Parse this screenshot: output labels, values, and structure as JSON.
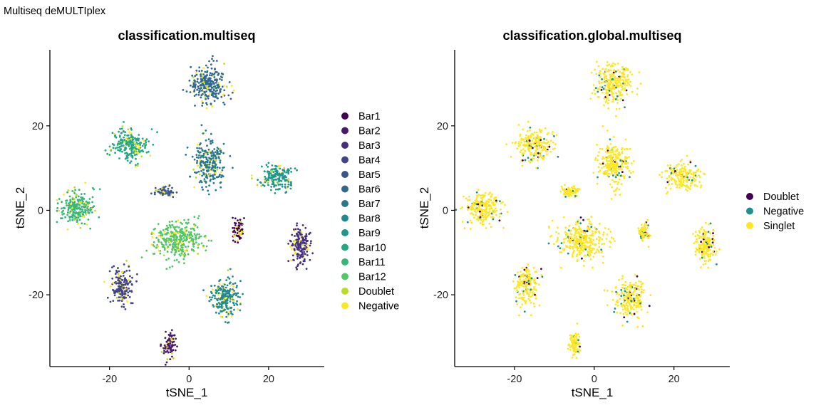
{
  "figure_title": "Multiseq deMULTIplex",
  "chart_data": [
    {
      "type": "scatter",
      "title": "classification.multiseq",
      "xlabel": "tSNE_1",
      "ylabel": "tSNE_2",
      "xlim": [
        -35,
        34
      ],
      "ylim": [
        -37,
        38
      ],
      "xticks": [
        -20,
        0,
        20
      ],
      "yticks": [
        -20,
        0,
        20
      ],
      "grid": false,
      "legend_position": "right",
      "legend": [
        {
          "label": "Bar1",
          "color": "#440154"
        },
        {
          "label": "Bar2",
          "color": "#481A6C"
        },
        {
          "label": "Bar3",
          "color": "#472F7D"
        },
        {
          "label": "Bar4",
          "color": "#414487"
        },
        {
          "label": "Bar5",
          "color": "#39568C"
        },
        {
          "label": "Bar6",
          "color": "#31688E"
        },
        {
          "label": "Bar7",
          "color": "#2A788E"
        },
        {
          "label": "Bar8",
          "color": "#23888E"
        },
        {
          "label": "Bar9",
          "color": "#1F988B"
        },
        {
          "label": "Bar10",
          "color": "#22A884"
        },
        {
          "label": "Bar11",
          "color": "#35B779"
        },
        {
          "label": "Bar12",
          "color": "#54C568"
        },
        {
          "label": "Doublet",
          "color": "#BADE28"
        },
        {
          "label": "Negative",
          "color": "#FDE725"
        }
      ],
      "clusters": [
        {
          "cx": 5.0,
          "cy": 30.0,
          "sx": 3.0,
          "sy": 3.0,
          "label": "Bar6"
        },
        {
          "cx": 5.0,
          "cy": 11.0,
          "sx": 2.5,
          "sy": 3.5,
          "label": "Bar7"
        },
        {
          "cx": -15.0,
          "cy": 15.5,
          "sx": 3.0,
          "sy": 2.5,
          "label": "Bar10"
        },
        {
          "cx": 22.0,
          "cy": 8.0,
          "sx": 3.0,
          "sy": 2.0,
          "label": "Bar9"
        },
        {
          "cx": -28.0,
          "cy": 0.5,
          "sx": 3.0,
          "sy": 2.5,
          "label": "Bar11"
        },
        {
          "cx": -3.0,
          "cy": -7.0,
          "sx": 4.0,
          "sy": 3.0,
          "label": "Bar12"
        },
        {
          "cx": 12.5,
          "cy": -5.0,
          "sx": 1.0,
          "sy": 1.5,
          "label": "Bar1"
        },
        {
          "cx": 28.0,
          "cy": -8.0,
          "sx": 1.8,
          "sy": 3.0,
          "label": "Bar3"
        },
        {
          "cx": -17.0,
          "cy": -18.0,
          "sx": 1.8,
          "sy": 3.0,
          "label": "Bar4"
        },
        {
          "cx": 9.0,
          "cy": -21.0,
          "sx": 2.5,
          "sy": 3.0,
          "label": "Bar8"
        },
        {
          "cx": -6.0,
          "cy": 4.5,
          "sx": 1.5,
          "sy": 0.8,
          "label": "Bar5"
        },
        {
          "cx": -5.0,
          "cy": -32.0,
          "sx": 1.0,
          "sy": 2.0,
          "label": "Bar2"
        }
      ]
    },
    {
      "type": "scatter",
      "title": "classification.global.multiseq",
      "xlabel": "tSNE_1",
      "ylabel": "tSNE_2",
      "xlim": [
        -35,
        34
      ],
      "ylim": [
        -37,
        38
      ],
      "xticks": [
        -20,
        0,
        20
      ],
      "yticks": [
        -20,
        0,
        20
      ],
      "grid": false,
      "legend_position": "right",
      "legend": [
        {
          "label": "Doublet",
          "color": "#440154"
        },
        {
          "label": "Negative",
          "color": "#21908C"
        },
        {
          "label": "Singlet",
          "color": "#FDE725"
        }
      ],
      "clusters": [
        {
          "cx": 5.0,
          "cy": 30.0,
          "sx": 3.0,
          "sy": 3.0
        },
        {
          "cx": 5.0,
          "cy": 11.0,
          "sx": 2.5,
          "sy": 3.5
        },
        {
          "cx": -15.0,
          "cy": 15.5,
          "sx": 3.0,
          "sy": 2.5
        },
        {
          "cx": 22.0,
          "cy": 8.0,
          "sx": 3.0,
          "sy": 2.0
        },
        {
          "cx": -28.0,
          "cy": 0.5,
          "sx": 3.0,
          "sy": 2.5
        },
        {
          "cx": -3.0,
          "cy": -7.0,
          "sx": 4.0,
          "sy": 3.0
        },
        {
          "cx": 12.5,
          "cy": -5.0,
          "sx": 1.0,
          "sy": 1.5
        },
        {
          "cx": 28.0,
          "cy": -8.0,
          "sx": 1.8,
          "sy": 3.0
        },
        {
          "cx": -17.0,
          "cy": -18.0,
          "sx": 1.8,
          "sy": 3.0
        },
        {
          "cx": 9.0,
          "cy": -21.0,
          "sx": 2.5,
          "sy": 3.0
        },
        {
          "cx": -6.0,
          "cy": 4.5,
          "sx": 1.5,
          "sy": 0.8
        },
        {
          "cx": -5.0,
          "cy": -32.0,
          "sx": 1.0,
          "sy": 2.0
        }
      ]
    }
  ]
}
